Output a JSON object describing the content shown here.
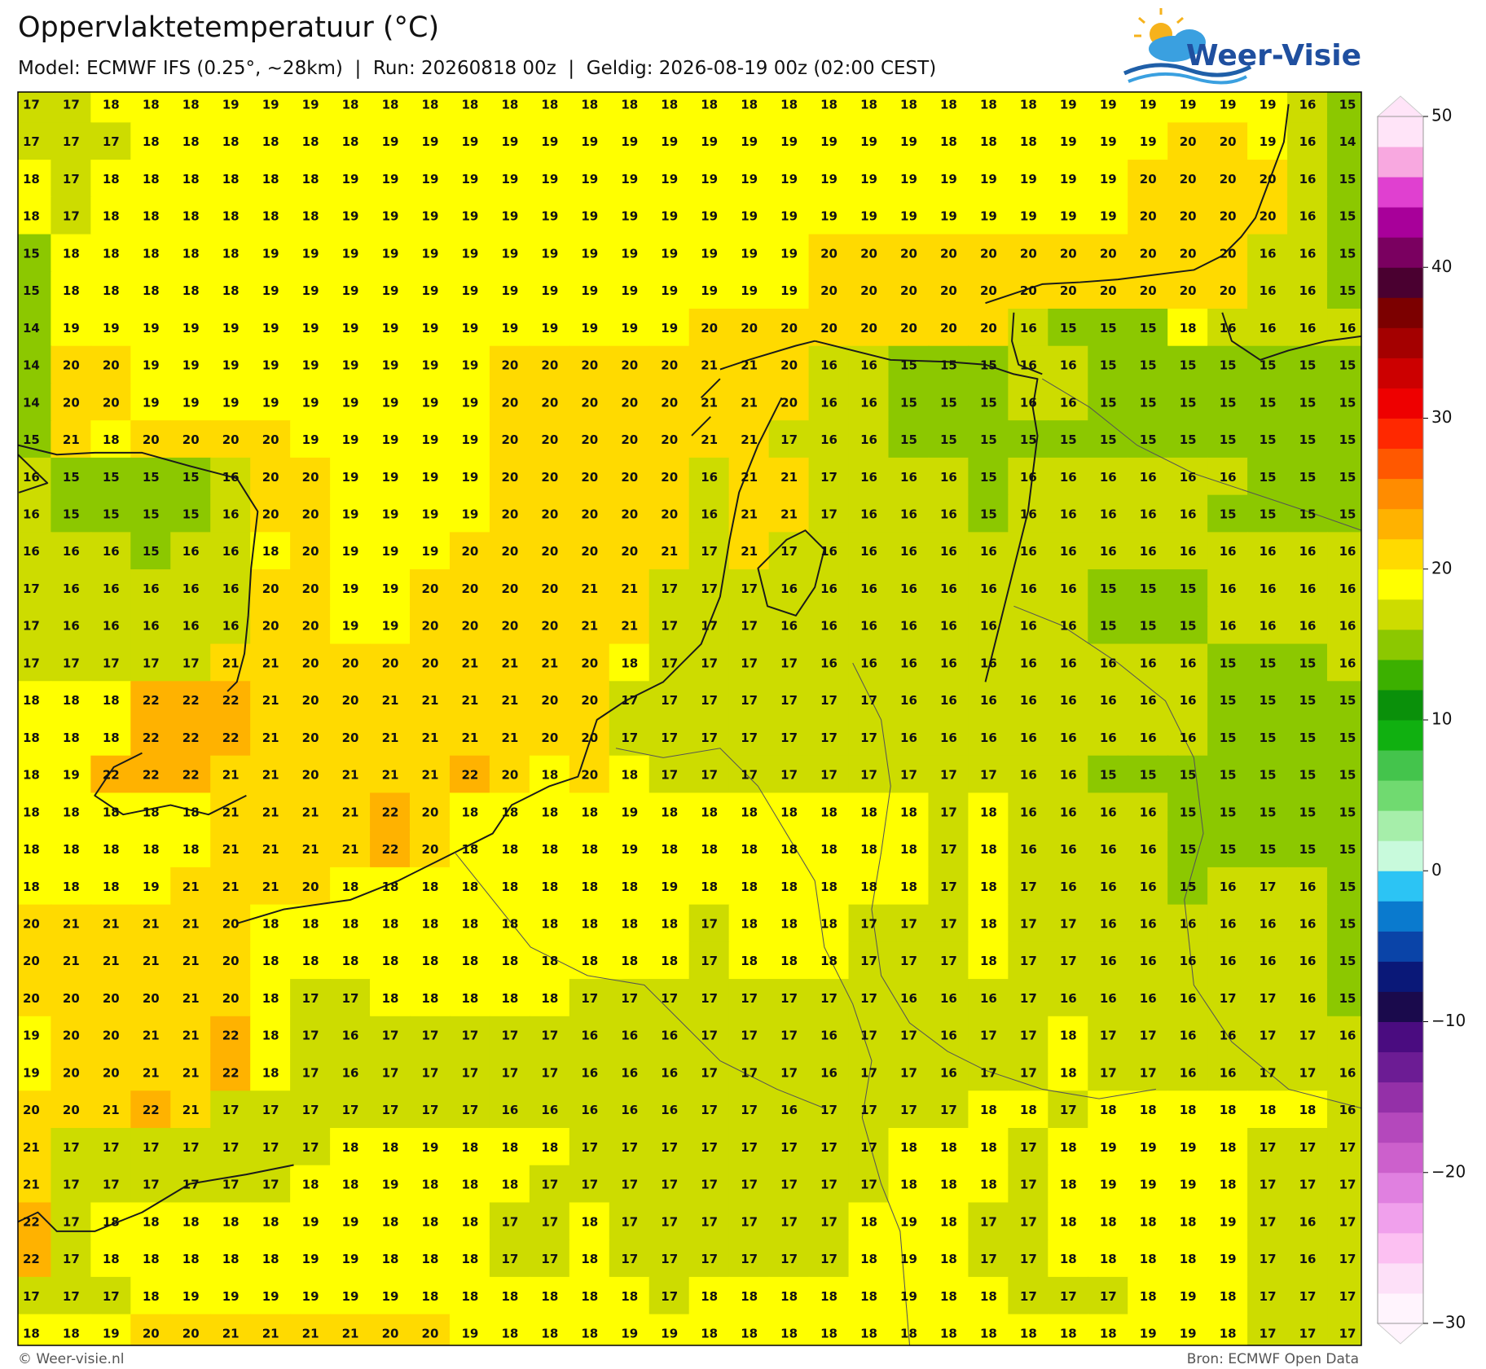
{
  "header": {
    "title": "Oppervlaktetemperatuur (°C)",
    "subtitle": "Model: ECMWF IFS (0.25°, ~28km)  |  Run: 20260818 00z  |  Geldig: 2026-08-19 00z (02:00 CEST)",
    "logo": "Weer-Visie"
  },
  "map": {
    "values": [
      [
        17,
        17,
        18,
        18,
        18,
        19,
        19,
        19,
        18,
        18,
        18,
        18,
        18,
        18,
        18,
        18,
        18,
        18,
        18,
        18,
        18,
        18,
        18,
        18,
        18,
        18,
        19,
        19,
        19,
        19,
        19,
        19,
        16,
        15
      ],
      [
        17,
        17,
        17,
        18,
        18,
        18,
        18,
        18,
        18,
        19,
        19,
        19,
        19,
        19,
        19,
        19,
        19,
        19,
        19,
        19,
        19,
        19,
        19,
        18,
        18,
        18,
        19,
        19,
        19,
        20,
        20,
        19,
        16,
        14
      ],
      [
        18,
        17,
        18,
        18,
        18,
        18,
        18,
        18,
        19,
        19,
        19,
        19,
        19,
        19,
        19,
        19,
        19,
        19,
        19,
        19,
        19,
        19,
        19,
        19,
        19,
        19,
        19,
        19,
        20,
        20,
        20,
        20,
        16,
        15
      ],
      [
        18,
        17,
        18,
        18,
        18,
        18,
        18,
        18,
        19,
        19,
        19,
        19,
        19,
        19,
        19,
        19,
        19,
        19,
        19,
        19,
        19,
        19,
        19,
        19,
        19,
        19,
        19,
        19,
        20,
        20,
        20,
        20,
        16,
        15
      ],
      [
        15,
        18,
        18,
        18,
        18,
        18,
        19,
        19,
        19,
        19,
        19,
        19,
        19,
        19,
        19,
        19,
        19,
        19,
        19,
        19,
        20,
        20,
        20,
        20,
        20,
        20,
        20,
        20,
        20,
        20,
        20,
        16,
        16,
        15
      ],
      [
        15,
        18,
        18,
        18,
        18,
        18,
        19,
        19,
        19,
        19,
        19,
        19,
        19,
        19,
        19,
        19,
        19,
        19,
        19,
        19,
        20,
        20,
        20,
        20,
        20,
        20,
        20,
        20,
        20,
        20,
        20,
        16,
        16,
        15
      ],
      [
        14,
        19,
        19,
        19,
        19,
        19,
        19,
        19,
        19,
        19,
        19,
        19,
        19,
        19,
        19,
        19,
        19,
        20,
        20,
        20,
        20,
        20,
        20,
        20,
        20,
        16,
        15,
        15,
        15,
        18,
        16,
        16,
        16,
        16
      ],
      [
        14,
        20,
        20,
        19,
        19,
        19,
        19,
        19,
        19,
        19,
        19,
        19,
        20,
        20,
        20,
        20,
        20,
        21,
        21,
        20,
        16,
        16,
        15,
        15,
        15,
        16,
        16,
        15,
        15,
        15,
        15,
        15,
        15,
        15
      ],
      [
        14,
        20,
        20,
        19,
        19,
        19,
        19,
        19,
        19,
        19,
        19,
        19,
        20,
        20,
        20,
        20,
        20,
        21,
        21,
        20,
        16,
        16,
        15,
        15,
        15,
        16,
        16,
        15,
        15,
        15,
        15,
        15,
        15,
        15
      ],
      [
        15,
        21,
        18,
        20,
        20,
        20,
        20,
        19,
        19,
        19,
        19,
        19,
        20,
        20,
        20,
        20,
        20,
        21,
        21,
        17,
        16,
        16,
        15,
        15,
        15,
        15,
        15,
        15,
        15,
        15,
        15,
        15,
        15,
        15
      ],
      [
        16,
        15,
        15,
        15,
        15,
        16,
        20,
        20,
        19,
        19,
        19,
        19,
        20,
        20,
        20,
        20,
        20,
        16,
        21,
        21,
        17,
        16,
        16,
        16,
        15,
        16,
        16,
        16,
        16,
        16,
        16,
        15,
        15,
        15
      ],
      [
        16,
        15,
        15,
        15,
        15,
        16,
        20,
        20,
        19,
        19,
        19,
        19,
        20,
        20,
        20,
        20,
        20,
        16,
        21,
        21,
        17,
        16,
        16,
        16,
        15,
        16,
        16,
        16,
        16,
        16,
        15,
        15,
        15,
        15
      ],
      [
        16,
        16,
        16,
        15,
        16,
        16,
        18,
        20,
        19,
        19,
        19,
        20,
        20,
        20,
        20,
        20,
        21,
        17,
        21,
        17,
        16,
        16,
        16,
        16,
        16,
        16,
        16,
        16,
        16,
        16,
        16,
        16,
        16,
        16
      ],
      [
        17,
        16,
        16,
        16,
        16,
        16,
        20,
        20,
        19,
        19,
        20,
        20,
        20,
        20,
        21,
        21,
        17,
        17,
        17,
        16,
        16,
        16,
        16,
        16,
        16,
        16,
        16,
        15,
        15,
        15,
        16,
        16,
        16,
        16
      ],
      [
        17,
        16,
        16,
        16,
        16,
        16,
        20,
        20,
        19,
        19,
        20,
        20,
        20,
        20,
        21,
        21,
        17,
        17,
        17,
        16,
        16,
        16,
        16,
        16,
        16,
        16,
        16,
        15,
        15,
        15,
        16,
        16,
        16,
        16
      ],
      [
        17,
        17,
        17,
        17,
        17,
        21,
        21,
        20,
        20,
        20,
        20,
        21,
        21,
        21,
        20,
        18,
        17,
        17,
        17,
        17,
        16,
        16,
        16,
        16,
        16,
        16,
        16,
        16,
        16,
        16,
        15,
        15,
        15,
        16
      ],
      [
        18,
        18,
        18,
        22,
        22,
        22,
        21,
        20,
        20,
        21,
        21,
        21,
        21,
        20,
        20,
        17,
        17,
        17,
        17,
        17,
        17,
        17,
        16,
        16,
        16,
        16,
        16,
        16,
        16,
        16,
        15,
        15,
        15,
        15
      ],
      [
        18,
        18,
        18,
        22,
        22,
        22,
        21,
        20,
        20,
        21,
        21,
        21,
        21,
        20,
        20,
        17,
        17,
        17,
        17,
        17,
        17,
        17,
        16,
        16,
        16,
        16,
        16,
        16,
        16,
        16,
        15,
        15,
        15,
        15
      ],
      [
        18,
        19,
        22,
        22,
        22,
        21,
        21,
        20,
        21,
        21,
        21,
        22,
        20,
        18,
        20,
        18,
        17,
        17,
        17,
        17,
        17,
        17,
        17,
        17,
        17,
        16,
        16,
        15,
        15,
        15,
        15,
        15,
        15,
        15
      ],
      [
        18,
        18,
        18,
        18,
        18,
        21,
        21,
        21,
        21,
        22,
        20,
        18,
        18,
        18,
        18,
        19,
        18,
        18,
        18,
        18,
        18,
        18,
        18,
        17,
        18,
        16,
        16,
        16,
        16,
        15,
        15,
        15,
        15,
        15
      ],
      [
        18,
        18,
        18,
        18,
        18,
        21,
        21,
        21,
        21,
        22,
        20,
        18,
        18,
        18,
        18,
        19,
        18,
        18,
        18,
        18,
        18,
        18,
        18,
        17,
        18,
        16,
        16,
        16,
        16,
        15,
        15,
        15,
        15,
        15
      ],
      [
        18,
        18,
        18,
        19,
        21,
        21,
        21,
        20,
        18,
        18,
        18,
        18,
        18,
        18,
        18,
        18,
        19,
        18,
        18,
        18,
        18,
        18,
        18,
        17,
        18,
        17,
        16,
        16,
        16,
        15,
        16,
        17,
        16,
        15
      ],
      [
        20,
        21,
        21,
        21,
        21,
        20,
        18,
        18,
        18,
        18,
        18,
        18,
        18,
        18,
        18,
        18,
        18,
        17,
        18,
        18,
        18,
        17,
        17,
        17,
        18,
        17,
        17,
        16,
        16,
        16,
        16,
        16,
        16,
        15
      ],
      [
        20,
        21,
        21,
        21,
        21,
        20,
        18,
        18,
        18,
        18,
        18,
        18,
        18,
        18,
        18,
        18,
        18,
        17,
        18,
        18,
        18,
        17,
        17,
        17,
        18,
        17,
        17,
        16,
        16,
        16,
        16,
        16,
        16,
        15
      ],
      [
        20,
        20,
        20,
        20,
        21,
        20,
        18,
        17,
        17,
        18,
        18,
        18,
        18,
        18,
        17,
        17,
        17,
        17,
        17,
        17,
        17,
        17,
        16,
        16,
        16,
        17,
        16,
        16,
        16,
        16,
        17,
        17,
        16,
        15
      ],
      [
        19,
        20,
        20,
        21,
        21,
        22,
        18,
        17,
        16,
        17,
        17,
        17,
        17,
        17,
        16,
        16,
        16,
        17,
        17,
        17,
        16,
        17,
        17,
        16,
        17,
        17,
        18,
        17,
        17,
        16,
        16,
        17,
        17,
        16
      ],
      [
        19,
        20,
        20,
        21,
        21,
        22,
        18,
        17,
        16,
        17,
        17,
        17,
        17,
        17,
        16,
        16,
        16,
        17,
        17,
        17,
        16,
        17,
        17,
        16,
        17,
        17,
        18,
        17,
        17,
        16,
        16,
        17,
        17,
        16
      ],
      [
        20,
        20,
        21,
        22,
        21,
        17,
        17,
        17,
        17,
        17,
        17,
        17,
        16,
        16,
        16,
        16,
        16,
        17,
        17,
        16,
        17,
        17,
        17,
        17,
        18,
        18,
        17,
        18,
        18,
        18,
        18,
        18,
        18,
        16
      ],
      [
        21,
        17,
        17,
        17,
        17,
        17,
        17,
        17,
        18,
        18,
        19,
        18,
        18,
        18,
        17,
        17,
        17,
        17,
        17,
        17,
        17,
        17,
        18,
        18,
        18,
        17,
        18,
        19,
        19,
        19,
        18,
        17,
        17,
        17
      ],
      [
        21,
        17,
        17,
        17,
        17,
        17,
        17,
        18,
        18,
        19,
        18,
        18,
        18,
        17,
        17,
        17,
        17,
        17,
        17,
        17,
        17,
        17,
        18,
        18,
        18,
        17,
        18,
        19,
        19,
        19,
        18,
        17,
        17,
        17
      ],
      [
        22,
        17,
        18,
        18,
        18,
        18,
        18,
        19,
        19,
        18,
        18,
        18,
        17,
        17,
        18,
        17,
        17,
        17,
        17,
        17,
        17,
        18,
        19,
        18,
        17,
        17,
        18,
        18,
        18,
        18,
        19,
        17,
        16,
        17
      ],
      [
        22,
        17,
        18,
        18,
        18,
        18,
        18,
        19,
        19,
        18,
        18,
        18,
        17,
        17,
        18,
        17,
        17,
        17,
        17,
        17,
        17,
        18,
        19,
        18,
        17,
        17,
        18,
        18,
        18,
        18,
        19,
        17,
        16,
        17
      ],
      [
        17,
        17,
        17,
        18,
        19,
        19,
        19,
        19,
        19,
        19,
        18,
        18,
        18,
        18,
        18,
        18,
        17,
        18,
        18,
        18,
        18,
        18,
        19,
        18,
        18,
        17,
        17,
        17,
        18,
        19,
        18,
        17,
        17,
        17
      ],
      [
        18,
        18,
        19,
        20,
        20,
        21,
        21,
        21,
        21,
        20,
        20,
        19,
        18,
        18,
        18,
        19,
        19,
        18,
        18,
        18,
        18,
        18,
        18,
        18,
        18,
        18,
        18,
        18,
        19,
        19,
        18,
        17,
        17,
        17
      ]
    ],
    "colorbar": {
      "lim": [
        -30,
        50
      ],
      "ticks": [
        {
          "value": -30,
          "label": "−30"
        },
        {
          "value": -20,
          "label": "−20"
        },
        {
          "value": -10,
          "label": "−10"
        },
        0,
        10,
        20,
        30,
        40,
        50
      ],
      "colors": [
        "#fff4fd",
        "#fde0f8",
        "#fcc0f2",
        "#f0a0ec",
        "#e080e0",
        "#cc60cc",
        "#b448bc",
        "#9430a8",
        "#6c1c94",
        "#4a0c80",
        "#1a0a4c",
        "#0a1878",
        "#0a44a8",
        "#0a7ace",
        "#2cc4f4",
        "#c8fadc",
        "#a6eeaa",
        "#70da70",
        "#44c44c",
        "#10b010",
        "#0a900a",
        "#3cb000",
        "#8cc800",
        "#cddc00",
        "#ffff00",
        "#ffda00",
        "#ffb200",
        "#ff8c00",
        "#ff5800",
        "#ff2800",
        "#ee0000",
        "#cc0000",
        "#a40000",
        "#7c0000",
        "#4a0030",
        "#7a0060",
        "#a8009a",
        "#e040d0",
        "#f8a8e0",
        "#ffe4f8"
      ]
    }
  },
  "footer": {
    "credit": "© Weer-visie.nl",
    "source": "Bron: ECMWF Open Data"
  }
}
